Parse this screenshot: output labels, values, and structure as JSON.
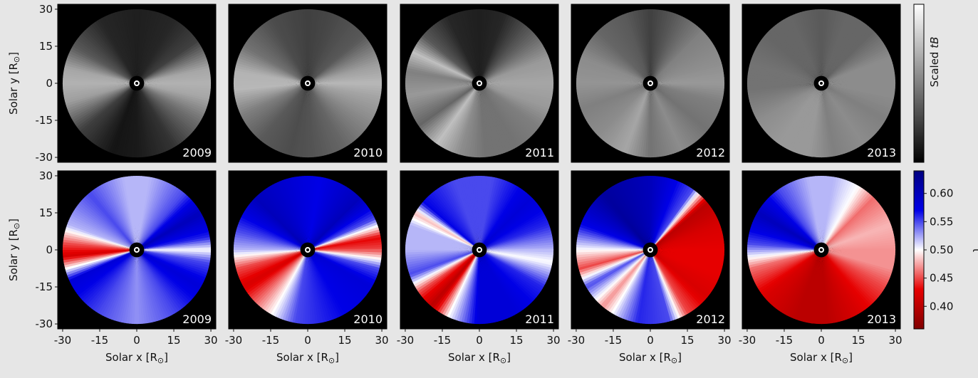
{
  "chart_data": {
    "type": "heatmap",
    "layout": "2 rows x 5 columns of polar images of the solar corona",
    "years": [
      "2009",
      "2010",
      "2011",
      "2012",
      "2013"
    ],
    "xlabel": "Solar x [R",
    "ylabel": "Solar y [R",
    "axis_unit_symbol": "⊙",
    "axis_unit_close": "]",
    "xlim": [
      -32,
      32
    ],
    "ylim": [
      -32,
      32
    ],
    "ticks": [
      -30,
      -15,
      0,
      15,
      30
    ],
    "tick_labels": [
      "-30",
      "-15",
      "0",
      "15",
      "30"
    ],
    "outer_radius_Rsun": 30,
    "inner_occulter_radius_Rsun": 3,
    "rows": [
      {
        "quantity": "Scaled tB",
        "colorbar_label_prefix": "Scaled ",
        "colorbar_label_italic": "tB",
        "colormap": "gray",
        "colorbar_ticks": [],
        "panels": [
          {
            "year": "2009",
            "angular_profile": [
              [
                0,
                0.7
              ],
              [
                12,
                0.65
              ],
              [
                35,
                0.25
              ],
              [
                60,
                0.15
              ],
              [
                90,
                0.12
              ],
              [
                120,
                0.15
              ],
              [
                150,
                0.35
              ],
              [
                168,
                0.65
              ],
              [
                180,
                0.7
              ],
              [
                195,
                0.62
              ],
              [
                220,
                0.25
              ],
              [
                250,
                0.08
              ],
              [
                270,
                0.1
              ],
              [
                300,
                0.2
              ],
              [
                330,
                0.45
              ],
              [
                348,
                0.65
              ],
              [
                360,
                0.7
              ]
            ]
          },
          {
            "year": "2010",
            "angular_profile": [
              [
                0,
                0.72
              ],
              [
                15,
                0.62
              ],
              [
                40,
                0.35
              ],
              [
                70,
                0.28
              ],
              [
                90,
                0.25
              ],
              [
                120,
                0.3
              ],
              [
                150,
                0.45
              ],
              [
                170,
                0.7
              ],
              [
                185,
                0.72
              ],
              [
                205,
                0.5
              ],
              [
                230,
                0.35
              ],
              [
                255,
                0.3
              ],
              [
                275,
                0.33
              ],
              [
                300,
                0.4
              ],
              [
                330,
                0.55
              ],
              [
                350,
                0.65
              ],
              [
                360,
                0.72
              ]
            ]
          },
          {
            "year": "2011",
            "angular_profile": [
              [
                0,
                0.65
              ],
              [
                20,
                0.6
              ],
              [
                40,
                0.4
              ],
              [
                70,
                0.15
              ],
              [
                90,
                0.12
              ],
              [
                115,
                0.15
              ],
              [
                140,
                0.35
              ],
              [
                155,
                0.75
              ],
              [
                170,
                0.5
              ],
              [
                190,
                0.6
              ],
              [
                215,
                0.4
              ],
              [
                235,
                0.75
              ],
              [
                255,
                0.55
              ],
              [
                275,
                0.45
              ],
              [
                300,
                0.45
              ],
              [
                325,
                0.5
              ],
              [
                340,
                0.6
              ],
              [
                360,
                0.65
              ]
            ]
          },
          {
            "year": "2012",
            "angular_profile": [
              [
                0,
                0.6
              ],
              [
                20,
                0.55
              ],
              [
                45,
                0.5
              ],
              [
                70,
                0.35
              ],
              [
                90,
                0.25
              ],
              [
                110,
                0.35
              ],
              [
                135,
                0.4
              ],
              [
                160,
                0.55
              ],
              [
                180,
                0.58
              ],
              [
                200,
                0.5
              ],
              [
                225,
                0.55
              ],
              [
                250,
                0.65
              ],
              [
                270,
                0.45
              ],
              [
                295,
                0.55
              ],
              [
                320,
                0.45
              ],
              [
                345,
                0.5
              ],
              [
                360,
                0.6
              ]
            ]
          },
          {
            "year": "2013",
            "angular_profile": [
              [
                0,
                0.55
              ],
              [
                20,
                0.55
              ],
              [
                45,
                0.4
              ],
              [
                70,
                0.4
              ],
              [
                90,
                0.35
              ],
              [
                115,
                0.4
              ],
              [
                140,
                0.4
              ],
              [
                165,
                0.45
              ],
              [
                185,
                0.45
              ],
              [
                210,
                0.55
              ],
              [
                235,
                0.6
              ],
              [
                260,
                0.6
              ],
              [
                280,
                0.5
              ],
              [
                305,
                0.55
              ],
              [
                330,
                0.5
              ],
              [
                350,
                0.55
              ],
              [
                360,
                0.55
              ]
            ]
          }
        ]
      },
      {
        "quantity": "τ",
        "colorbar_label": "τ",
        "colormap": "seismic_r",
        "colorbar_range": [
          0.36,
          0.64
        ],
        "colorbar_ticks": [
          0.4,
          0.45,
          0.5,
          0.55,
          0.6
        ],
        "colorbar_tick_labels": [
          "0.40",
          "0.45",
          "0.50",
          "0.55",
          "0.60"
        ],
        "panels": [
          {
            "year": "2009",
            "angular_profile": [
              [
                0,
                0.5
              ],
              [
                10,
                0.56
              ],
              [
                30,
                0.6
              ],
              [
                50,
                0.55
              ],
              [
                80,
                0.52
              ],
              [
                100,
                0.52
              ],
              [
                130,
                0.55
              ],
              [
                160,
                0.52
              ],
              [
                175,
                0.45
              ],
              [
                185,
                0.42
              ],
              [
                195,
                0.5
              ],
              [
                205,
                0.58
              ],
              [
                240,
                0.55
              ],
              [
                270,
                0.53
              ],
              [
                300,
                0.55
              ],
              [
                330,
                0.58
              ],
              [
                350,
                0.55
              ],
              [
                360,
                0.5
              ]
            ]
          },
          {
            "year": "2010",
            "angular_profile": [
              [
                0,
                0.45
              ],
              [
                10,
                0.43
              ],
              [
                25,
                0.55
              ],
              [
                45,
                0.6
              ],
              [
                80,
                0.57
              ],
              [
                100,
                0.58
              ],
              [
                135,
                0.6
              ],
              [
                165,
                0.55
              ],
              [
                180,
                0.52
              ],
              [
                195,
                0.45
              ],
              [
                210,
                0.42
              ],
              [
                230,
                0.47
              ],
              [
                260,
                0.55
              ],
              [
                300,
                0.57
              ],
              [
                330,
                0.58
              ],
              [
                345,
                0.55
              ],
              [
                360,
                0.45
              ]
            ]
          },
          {
            "year": "2011",
            "angular_profile": [
              [
                0,
                0.52
              ],
              [
                20,
                0.56
              ],
              [
                45,
                0.58
              ],
              [
                80,
                0.55
              ],
              [
                110,
                0.55
              ],
              [
                140,
                0.57
              ],
              [
                150,
                0.48
              ],
              [
                160,
                0.52
              ],
              [
                180,
                0.52
              ],
              [
                200,
                0.55
              ],
              [
                215,
                0.45
              ],
              [
                230,
                0.4
              ],
              [
                245,
                0.5
              ],
              [
                270,
                0.58
              ],
              [
                300,
                0.58
              ],
              [
                330,
                0.56
              ],
              [
                350,
                0.5
              ],
              [
                360,
                0.52
              ]
            ]
          },
          {
            "year": "2012",
            "angular_profile": [
              [
                0,
                0.43
              ],
              [
                20,
                0.42
              ],
              [
                40,
                0.4
              ],
              [
                55,
                0.55
              ],
              [
                90,
                0.6
              ],
              [
                130,
                0.62
              ],
              [
                160,
                0.57
              ],
              [
                180,
                0.5
              ],
              [
                195,
                0.45
              ],
              [
                210,
                0.55
              ],
              [
                230,
                0.47
              ],
              [
                245,
                0.52
              ],
              [
                260,
                0.56
              ],
              [
                285,
                0.55
              ],
              [
                300,
                0.45
              ],
              [
                320,
                0.42
              ],
              [
                340,
                0.43
              ],
              [
                360,
                0.43
              ]
            ]
          },
          {
            "year": "2013",
            "angular_profile": [
              [
                0,
                0.47
              ],
              [
                20,
                0.48
              ],
              [
                45,
                0.46
              ],
              [
                60,
                0.5
              ],
              [
                80,
                0.52
              ],
              [
                100,
                0.52
              ],
              [
                125,
                0.55
              ],
              [
                150,
                0.6
              ],
              [
                175,
                0.55
              ],
              [
                195,
                0.46
              ],
              [
                220,
                0.42
              ],
              [
                250,
                0.4
              ],
              [
                275,
                0.4
              ],
              [
                300,
                0.42
              ],
              [
                330,
                0.45
              ],
              [
                345,
                0.47
              ],
              [
                360,
                0.47
              ]
            ]
          }
        ]
      }
    ]
  }
}
